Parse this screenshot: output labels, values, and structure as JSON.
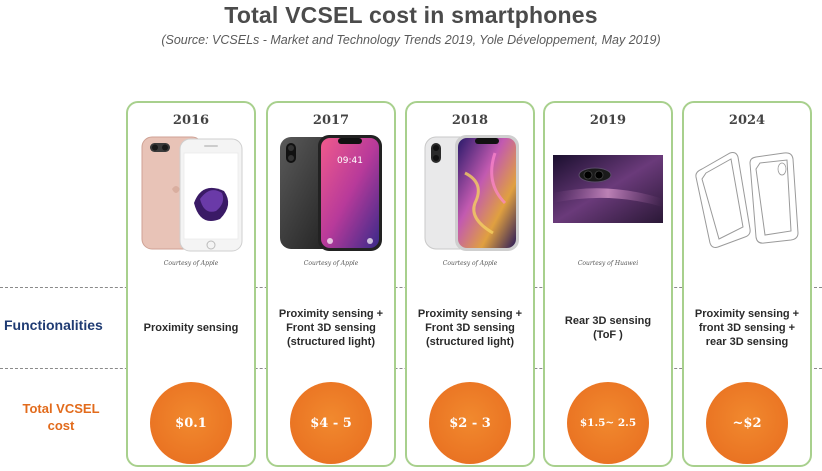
{
  "header": {
    "title": "Total VCSEL cost in smartphones",
    "subtitle": "(Source: VCSELs - Market and Technology Trends 2019, Yole Développement, May 2019)"
  },
  "rows": {
    "functionalities_label": "Functionalities",
    "cost_label": "Total VCSEL\ncost"
  },
  "columns": [
    {
      "year": "2016",
      "image": "iphone-7-plus-rose-gold",
      "courtesy": "Courtesy of Apple",
      "functionality": "Proximity sensing",
      "cost": "$0.1"
    },
    {
      "year": "2017",
      "image": "iphone-x-space-gray",
      "courtesy": "Courtesy of Apple",
      "functionality": "Proximity sensing +\nFront 3D sensing\n(structured light)",
      "cost": "$4 - 5"
    },
    {
      "year": "2018",
      "image": "iphone-xs-silver",
      "courtesy": "Courtesy of Apple",
      "functionality": "Proximity sensing +\nFront 3D sensing\n(structured light)",
      "cost": "$2 - 3"
    },
    {
      "year": "2019",
      "image": "huawei-phone-rear-purple",
      "courtesy": "Courtesy of Huawei",
      "functionality": "Rear 3D sensing\n(ToF )",
      "cost": "$1.5~ 2.5"
    },
    {
      "year": "2024",
      "image": "phone-outline-sketch",
      "courtesy": "",
      "functionality": "Proximity sensing +\nfront 3D sensing +\nrear 3D sensing",
      "cost": "~$2"
    }
  ],
  "colors": {
    "column_border": "#a8d08d",
    "cost_circle": "#ea7423",
    "functionalities_label": "#1f3b73",
    "cost_label": "#e26b1c"
  }
}
